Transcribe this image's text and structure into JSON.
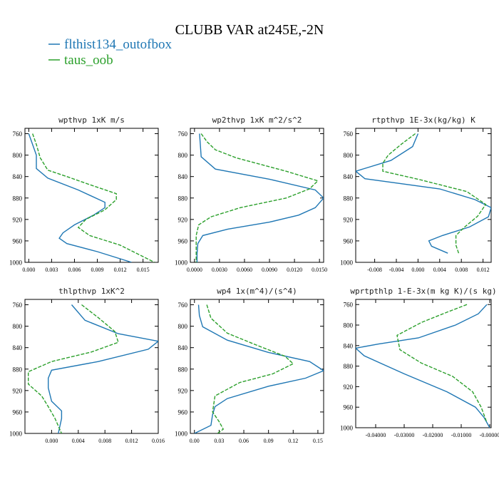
{
  "figure": {
    "title": "CLUBB VAR at245E,-2N",
    "legend": [
      {
        "label": "flthist134_outofbox",
        "color": "#1f77b4"
      },
      {
        "label": "taus_oob",
        "color": "#2ca02c"
      }
    ]
  },
  "chart_data": [
    {
      "type": "line",
      "title": "wpthvp  1xK m/s",
      "xticks": [
        "0.000",
        "0.003",
        "0.006",
        "0.009",
        "0.012",
        "0.015"
      ],
      "xlim": [
        -0.0005,
        0.017
      ],
      "yticks": [
        "760",
        "800",
        "840",
        "880",
        "920",
        "960",
        "1000"
      ],
      "ylim": [
        1000,
        750
      ],
      "series": [
        {
          "name": "flthist134_outofbox",
          "color": "#1f77b4",
          "dashed": false,
          "x": [
            0.0,
            0.0005,
            0.001,
            0.001,
            0.0025,
            0.0065,
            0.01,
            0.01,
            0.0085,
            0.006,
            0.0045,
            0.004,
            0.005,
            0.009,
            0.0135
          ],
          "y": [
            760,
            780,
            800,
            825,
            843,
            865,
            888,
            898,
            912,
            930,
            945,
            955,
            965,
            980,
            1000
          ]
        },
        {
          "name": "taus_oob",
          "color": "#2ca02c",
          "dashed": false,
          "x": [
            0.0005,
            0.001,
            0.0015,
            0.0025,
            0.005,
            0.008,
            0.0115,
            0.0115,
            0.01,
            0.0075,
            0.0065,
            0.008,
            0.012,
            0.0165
          ],
          "y": [
            760,
            780,
            805,
            828,
            840,
            855,
            872,
            883,
            902,
            920,
            935,
            950,
            968,
            1000
          ]
        }
      ]
    },
    {
      "type": "line",
      "title": "wp2thvp  1xK m^2/s^2",
      "xticks": [
        "0.0000",
        "0.0030",
        "0.0060",
        "0.0090",
        "0.0120",
        "0.0150"
      ],
      "xlim": [
        -0.0005,
        0.0155
      ],
      "yticks": [
        "760",
        "800",
        "840",
        "880",
        "920",
        "960",
        "1000"
      ],
      "ylim": [
        1000,
        750
      ],
      "series": [
        {
          "name": "flthist134_outofbox",
          "color": "#1f77b4",
          "dashed": false,
          "x": [
            0.0006,
            0.0007,
            0.0008,
            0.0025,
            0.009,
            0.0145,
            0.0155,
            0.0145,
            0.0125,
            0.009,
            0.004,
            0.001,
            0.0004,
            0.0003,
            0.0003
          ],
          "y": [
            760,
            780,
            803,
            826,
            845,
            865,
            880,
            898,
            912,
            925,
            938,
            950,
            965,
            985,
            1000
          ]
        },
        {
          "name": "taus_oob",
          "color": "#2ca02c",
          "dashed": false,
          "x": [
            0.0008,
            0.0015,
            0.0025,
            0.005,
            0.011,
            0.0148,
            0.0138,
            0.011,
            0.0055,
            0.002,
            0.0005,
            0.0002,
            0.0002,
            0.0002
          ],
          "y": [
            760,
            775,
            790,
            805,
            830,
            848,
            863,
            880,
            898,
            915,
            930,
            950,
            975,
            1000
          ]
        }
      ]
    },
    {
      "type": "line",
      "title": "rtpthvp  1E-3x(kg/kg) K",
      "xticks": [
        "-0.008",
        "-0.004",
        "0.000",
        "0.004",
        "0.008",
        "0.012"
      ],
      "xlim": [
        -0.0115,
        0.0135
      ],
      "yticks": [
        "760",
        "800",
        "840",
        "880",
        "920",
        "960",
        "1000"
      ],
      "ylim": [
        1000,
        750
      ],
      "series": [
        {
          "name": "flthist134_outofbox",
          "color": "#1f77b4",
          "dashed": false,
          "x": [
            0.0,
            -0.001,
            -0.005,
            -0.0115,
            -0.0098,
            0.004,
            0.0105,
            0.0135,
            0.013,
            0.0095,
            0.0045,
            0.002,
            0.0025,
            0.0055
          ],
          "y": [
            760,
            784,
            810,
            830,
            844,
            863,
            883,
            898,
            915,
            934,
            950,
            960,
            970,
            983
          ]
        },
        {
          "name": "taus_oob",
          "color": "#2ca02c",
          "dashed": false,
          "x": [
            -0.0005,
            -0.003,
            -0.0055,
            -0.0065,
            -0.0065,
            0.0,
            0.009,
            0.0125,
            0.011,
            0.0085,
            0.007,
            0.007,
            0.0075
          ],
          "y": [
            760,
            779,
            800,
            815,
            830,
            845,
            868,
            892,
            914,
            935,
            950,
            968,
            983
          ]
        }
      ]
    },
    {
      "type": "line",
      "title": "thlpthvp  1xK^2",
      "xticks": [
        "0.000",
        "0.004",
        "0.008",
        "0.012",
        "0.016"
      ],
      "xlim": [
        -0.004,
        0.016
      ],
      "yticks": [
        "760",
        "800",
        "840",
        "880",
        "920",
        "960",
        "1000"
      ],
      "ylim": [
        1000,
        750
      ],
      "series": [
        {
          "name": "flthist134_outofbox",
          "color": "#1f77b4",
          "dashed": false,
          "x": [
            0.003,
            0.005,
            0.01,
            0.016,
            0.0145,
            0.007,
            0.0,
            -0.0005,
            -0.0005,
            0.0,
            0.0015,
            0.0015,
            0.001
          ],
          "y": [
            760,
            789,
            814,
            828,
            843,
            866,
            882,
            897,
            915,
            940,
            958,
            972,
            1000
          ]
        },
        {
          "name": "taus_oob",
          "color": "#2ca02c",
          "dashed": false,
          "x": [
            0.0045,
            0.007,
            0.0095,
            0.01,
            0.006,
            0.0,
            -0.0035,
            -0.0035,
            -0.0015,
            -0.0005,
            0.0005,
            0.0015
          ],
          "y": [
            760,
            784,
            810,
            830,
            848,
            866,
            885,
            908,
            930,
            950,
            972,
            1000
          ]
        }
      ]
    },
    {
      "type": "line",
      "title": "wp4  1x(m^4)/(s^4)",
      "xticks": [
        "0.00",
        "0.03",
        "0.06",
        "0.09",
        "0.12",
        "0.15"
      ],
      "xlim": [
        -0.005,
        0.157
      ],
      "yticks": [
        "760",
        "800",
        "840",
        "880",
        "920",
        "960",
        "1000"
      ],
      "ylim": [
        1000,
        750
      ],
      "series": [
        {
          "name": "flthist134_outofbox",
          "color": "#1f77b4",
          "dashed": false,
          "x": [
            0.005,
            0.006,
            0.01,
            0.04,
            0.09,
            0.14,
            0.157,
            0.135,
            0.09,
            0.04,
            0.025,
            0.022,
            0.02,
            0.0
          ],
          "y": [
            760,
            780,
            801,
            826,
            849,
            866,
            883,
            897,
            912,
            935,
            950,
            965,
            985,
            1000
          ]
        },
        {
          "name": "taus_oob",
          "color": "#2ca02c",
          "dashed": false,
          "x": [
            0.015,
            0.02,
            0.04,
            0.075,
            0.11,
            0.12,
            0.095,
            0.055,
            0.025,
            0.022,
            0.03,
            0.035,
            0.028
          ],
          "y": [
            760,
            785,
            813,
            835,
            856,
            870,
            889,
            905,
            930,
            960,
            978,
            992,
            1000
          ]
        }
      ]
    },
    {
      "type": "line",
      "title": "wprtpthlp  1-E-3x(m kg K)/(s kg)",
      "xticks": [
        "-0.04000",
        "-0.03000",
        "-0.02000",
        "-0.01000",
        "-0.00000"
      ],
      "xlim": [
        -0.047,
        0.0005
      ],
      "yticks": [
        "760",
        "800",
        "840",
        "880",
        "920",
        "960",
        "1000"
      ],
      "ylim": [
        1000,
        750
      ],
      "series": [
        {
          "name": "flthist134_outofbox",
          "color": "#1f77b4",
          "dashed": false,
          "x": [
            -0.001,
            -0.004,
            -0.012,
            -0.025,
            -0.039,
            -0.047,
            -0.044,
            -0.03,
            -0.015,
            -0.005,
            -0.002,
            0.0
          ],
          "y": [
            760,
            778,
            800,
            825,
            837,
            845,
            860,
            895,
            930,
            960,
            980,
            1000
          ]
        },
        {
          "name": "taus_oob",
          "color": "#2ca02c",
          "dashed": false,
          "x": [
            -0.008,
            -0.015,
            -0.024,
            -0.0325,
            -0.0315,
            -0.024,
            -0.013,
            -0.006,
            -0.003,
            -0.001
          ],
          "y": [
            760,
            775,
            795,
            820,
            848,
            874,
            900,
            930,
            960,
            990
          ]
        }
      ]
    }
  ]
}
